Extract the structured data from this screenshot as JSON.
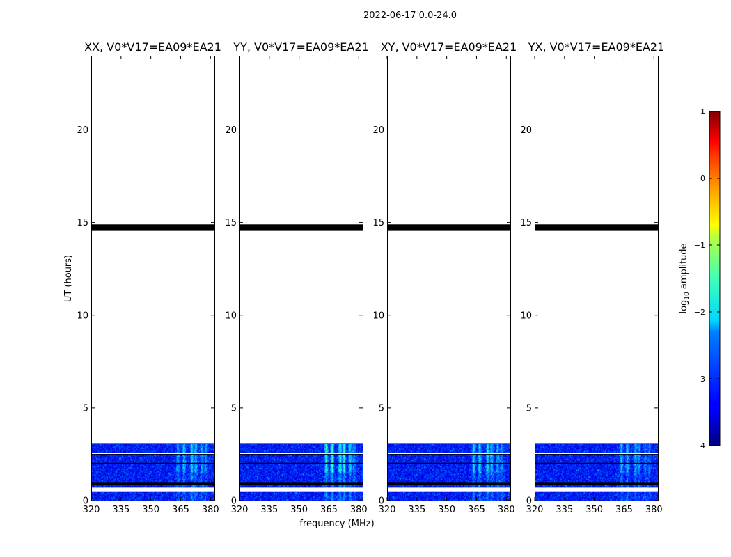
{
  "chart_data": {
    "type": "heatmap",
    "suptitle": "2022-06-17 0.0-24.0",
    "xlabel": "frequency (MHz)",
    "ylabel": "UT (hours)",
    "xlim": [
      320,
      382
    ],
    "ylim": [
      0,
      24
    ],
    "x_ticks": [
      320,
      335,
      350,
      365,
      380
    ],
    "y_ticks": [
      0,
      5,
      10,
      15,
      20
    ],
    "panels": [
      {
        "title": "XX, V0*V17=EA09*EA21",
        "rfi_intensity": [
          0.45,
          0.55,
          0.6,
          0.5,
          0.4,
          0.35
        ]
      },
      {
        "title": "YY, V0*V17=EA09*EA21",
        "rfi_intensity": [
          0.75,
          0.85,
          0.8,
          0.75,
          0.55,
          0.4
        ]
      },
      {
        "title": "XY, V0*V17=EA09*EA21",
        "rfi_intensity": [
          0.55,
          0.6,
          0.65,
          0.55,
          0.45,
          0.35
        ]
      },
      {
        "title": "YX, V0*V17=EA09*EA21",
        "rfi_intensity": [
          0.5,
          0.5,
          0.45,
          0.35,
          0.3,
          0.25
        ]
      }
    ],
    "data_region": {
      "ut_start": 0.0,
      "ut_end": 3.1,
      "gap_band_ut": [
        0.5,
        0.7
      ],
      "flagged_band_ut": [
        0.85,
        1.0
      ],
      "thin_lines_ut": [
        2.0,
        2.55
      ],
      "rfi_freq_start_mhz": 361,
      "rfi_channels_mhz": [
        363.5,
        366.5,
        370.5,
        372.5,
        375.5,
        377.5
      ],
      "background_level_log10": -3.3,
      "rfi_level_log10": -1.5
    },
    "flagged_block_ut": [
      14.55,
      14.9
    ],
    "colorbar": {
      "label": "log$_{10}$ amplitude",
      "label_main": "log",
      "label_sub": "10",
      "label_rest": " amplitude",
      "vmin": -4,
      "vmax": 1,
      "ticks": [
        "1",
        "0",
        "−1",
        "−2",
        "−3",
        "−4"
      ],
      "tick_values": [
        1,
        0,
        -1,
        -2,
        -3,
        -4
      ],
      "colormap": "jet"
    }
  }
}
